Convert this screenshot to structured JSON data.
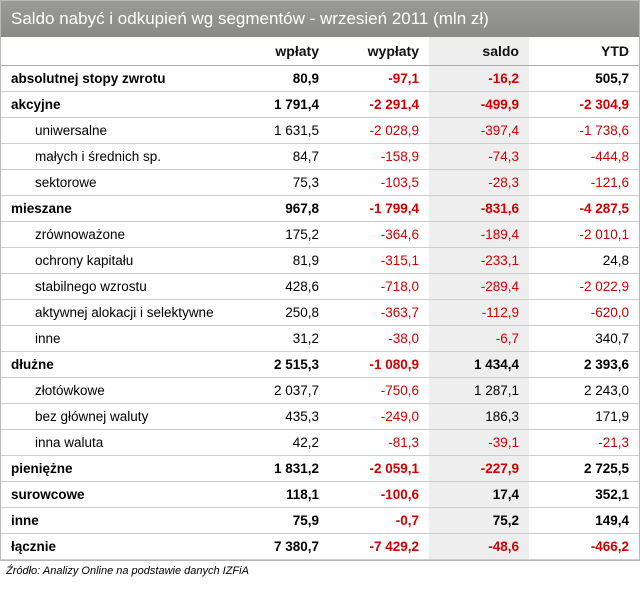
{
  "title": "Saldo nabyć i odkupień wg segmentów - wrzesień 2011 (mln zł)",
  "columns": {
    "c0": "",
    "c1": "wpłaty",
    "c2": "wypłaty",
    "c3": "saldo",
    "c4": "YTD"
  },
  "rows": {
    "r0": {
      "label": "absolutnej stopy zwrotu",
      "v1": "80,9",
      "v2": "-97,1",
      "v3": "-16,2",
      "v4": "505,7"
    },
    "r1": {
      "label": "akcyjne",
      "v1": "1 791,4",
      "v2": "-2 291,4",
      "v3": "-499,9",
      "v4": "-2 304,9"
    },
    "r2": {
      "label": "uniwersalne",
      "v1": "1 631,5",
      "v2": "-2 028,9",
      "v3": "-397,4",
      "v4": "-1 738,6"
    },
    "r3": {
      "label": "małych i średnich sp.",
      "v1": "84,7",
      "v2": "-158,9",
      "v3": "-74,3",
      "v4": "-444,8"
    },
    "r4": {
      "label": "sektorowe",
      "v1": "75,3",
      "v2": "-103,5",
      "v3": "-28,3",
      "v4": "-121,6"
    },
    "r5": {
      "label": "mieszane",
      "v1": "967,8",
      "v2": "-1 799,4",
      "v3": "-831,6",
      "v4": "-4 287,5"
    },
    "r6": {
      "label": "zrównoważone",
      "v1": "175,2",
      "v2": "-364,6",
      "v3": "-189,4",
      "v4": "-2 010,1"
    },
    "r7": {
      "label": "ochrony kapitału",
      "v1": "81,9",
      "v2": "-315,1",
      "v3": "-233,1",
      "v4": "24,8"
    },
    "r8": {
      "label": "stabilnego wzrostu",
      "v1": "428,6",
      "v2": "-718,0",
      "v3": "-289,4",
      "v4": "-2 022,9"
    },
    "r9": {
      "label": "aktywnej alokacji i selektywne",
      "v1": "250,8",
      "v2": "-363,7",
      "v3": "-112,9",
      "v4": "-620,0"
    },
    "r10": {
      "label": "inne",
      "v1": "31,2",
      "v2": "-38,0",
      "v3": "-6,7",
      "v4": "340,7"
    },
    "r11": {
      "label": "dłużne",
      "v1": "2 515,3",
      "v2": "-1 080,9",
      "v3": "1 434,4",
      "v4": "2 393,6"
    },
    "r12": {
      "label": "złotówkowe",
      "v1": "2 037,7",
      "v2": "-750,6",
      "v3": "1 287,1",
      "v4": "2 243,0"
    },
    "r13": {
      "label": "bez głównej waluty",
      "v1": "435,3",
      "v2": "-249,0",
      "v3": "186,3",
      "v4": "171,9"
    },
    "r14": {
      "label": "inna waluta",
      "v1": "42,2",
      "v2": "-81,3",
      "v3": "-39,1",
      "v4": "-21,3"
    },
    "r15": {
      "label": "pieniężne",
      "v1": "1 831,2",
      "v2": "-2 059,1",
      "v3": "-227,9",
      "v4": "2 725,5"
    },
    "r16": {
      "label": "surowcowe",
      "v1": "118,1",
      "v2": "-100,6",
      "v3": "17,4",
      "v4": "352,1"
    },
    "r17": {
      "label": "inne",
      "v1": "75,9",
      "v2": "-0,7",
      "v3": "75,2",
      "v4": "149,4"
    },
    "r18": {
      "label": "łącznie",
      "v1": "7 380,7",
      "v2": "-7 429,2",
      "v3": "-48,6",
      "v4": "-466,2"
    }
  },
  "source": "Źródło: Analizy Online na podstawie danych IZFiA",
  "style": {
    "neg_color": "#d00000",
    "header_bg": "#9a9a99",
    "saldo_bg": "#eeeeee",
    "border_color": "#cccccc"
  }
}
